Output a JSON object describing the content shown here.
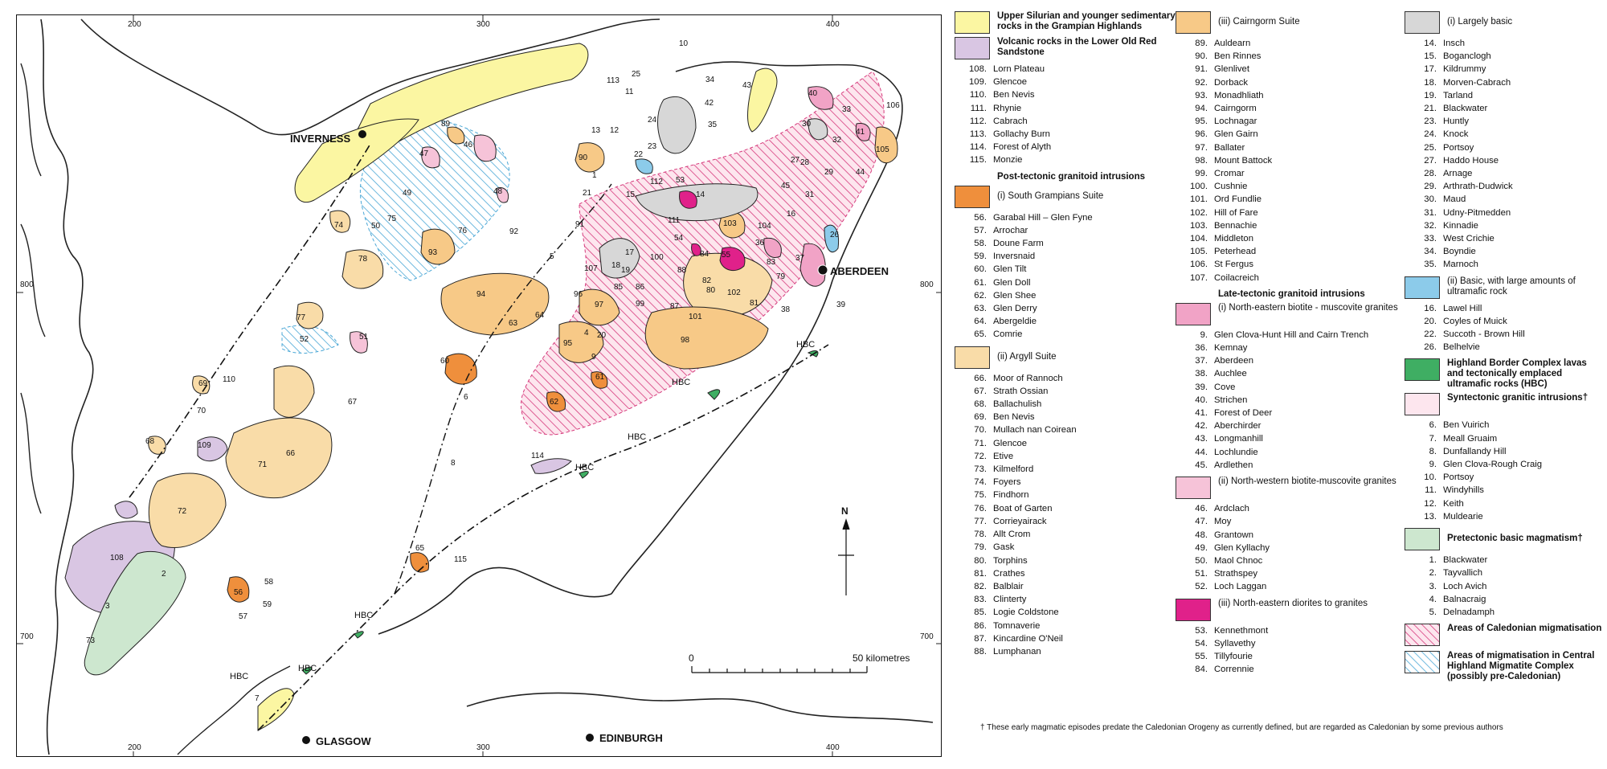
{
  "map": {
    "cities": [
      "INVERNESS",
      "ABERDEEN",
      "GLASGOW",
      "EDINBURGH"
    ],
    "grid_labels": [
      "200",
      "300",
      "400",
      "800",
      "700"
    ],
    "north_label": "N",
    "scale": {
      "start": "0",
      "end": "50 kilometres"
    },
    "boundary_label": "HBC",
    "intrusion_numbers": [
      "1",
      "2",
      "3",
      "4",
      "5",
      "6",
      "7",
      "8",
      "9",
      "10",
      "11",
      "12",
      "13",
      "14",
      "15",
      "16",
      "17",
      "18",
      "19",
      "20",
      "21",
      "22",
      "23",
      "24",
      "25",
      "26",
      "27",
      "28",
      "29",
      "30",
      "31",
      "32",
      "33",
      "34",
      "35",
      "36",
      "37",
      "38",
      "39",
      "40",
      "41",
      "42",
      "43",
      "44",
      "45",
      "46",
      "47",
      "48",
      "49",
      "50",
      "51",
      "52",
      "53",
      "54",
      "55",
      "56",
      "57",
      "58",
      "59",
      "60",
      "61",
      "62",
      "63",
      "64",
      "65",
      "66",
      "67",
      "68",
      "69",
      "70",
      "71",
      "72",
      "73",
      "74",
      "75",
      "76",
      "77",
      "78",
      "79",
      "80",
      "81",
      "82",
      "83",
      "84",
      "85",
      "86",
      "87",
      "88",
      "89",
      "90",
      "91",
      "92",
      "93",
      "94",
      "95",
      "96",
      "97",
      "98",
      "99",
      "100",
      "101",
      "102",
      "103",
      "104",
      "105",
      "106",
      "107",
      "108",
      "109",
      "110",
      "111",
      "112",
      "113",
      "114",
      "115"
    ],
    "colors": {
      "silurian": "#fbf6a2",
      "volcanic": "#d9c6e3",
      "south_grampians": "#ef8f3c",
      "argyll": "#f9dca8",
      "cairngorm": "#f7c987",
      "ne_biotite": "#f1a3c6",
      "nw_biotite": "#f6c3d8",
      "ne_diorite": "#e0218a",
      "largely_basic": "#d7d7d7",
      "basic_ultramafic": "#8ccbea",
      "hbc": "#3fae63",
      "syntectonic": "#fde6ee",
      "pretectonic": "#cde7cf",
      "caledonian_migmatisation": "#d63a7c",
      "central_migmatite": "#4aa7d6"
    }
  },
  "legend": {
    "col1": {
      "silurian": "Upper Silurian and younger sedimentary rocks in the Grampian Highlands",
      "volcanic": "Volcanic rocks in the Lower Old Red Sandstone",
      "volcanic_items": [
        [
          "108.",
          "Lorn Plateau"
        ],
        [
          "109.",
          "Glencoe"
        ],
        [
          "110.",
          "Ben Nevis"
        ],
        [
          "111.",
          "Rhynie"
        ],
        [
          "112.",
          "Cabrach"
        ],
        [
          "113.",
          "Gollachy Burn"
        ],
        [
          "114.",
          "Forest of Alyth"
        ],
        [
          "115.",
          "Monzie"
        ]
      ],
      "post_heading": "Post-tectonic granitoid intrusions",
      "south_grampians": "(i) South Grampians Suite",
      "south_items": [
        [
          "56.",
          "Garabal Hill – Glen Fyne"
        ],
        [
          "57.",
          "Arrochar"
        ],
        [
          "58.",
          "Doune Farm"
        ],
        [
          "59.",
          "Inversnaid"
        ],
        [
          "60.",
          "Glen Tilt"
        ],
        [
          "61.",
          "Glen Doll"
        ],
        [
          "62.",
          "Glen Shee"
        ],
        [
          "63.",
          "Glen Derry"
        ],
        [
          "64.",
          "Abergeldie"
        ],
        [
          "65.",
          "Comrie"
        ]
      ],
      "argyll": "(ii) Argyll Suite",
      "argyll_items": [
        [
          "66.",
          "Moor of Rannoch"
        ],
        [
          "67.",
          "Strath Ossian"
        ],
        [
          "68.",
          "Ballachulish"
        ],
        [
          "69.",
          "Ben Nevis"
        ],
        [
          "70.",
          "Mullach nan Coirean"
        ],
        [
          "71.",
          "Glencoe"
        ],
        [
          "72.",
          "Etive"
        ],
        [
          "73.",
          "Kilmelford"
        ],
        [
          "74.",
          "Foyers"
        ],
        [
          "75.",
          "Findhorn"
        ],
        [
          "76.",
          "Boat of Garten"
        ],
        [
          "77.",
          "Corrieyairack"
        ],
        [
          "78.",
          "Allt Crom"
        ],
        [
          "79.",
          "Gask"
        ],
        [
          "80.",
          "Torphins"
        ],
        [
          "81.",
          "Crathes"
        ],
        [
          "82.",
          "Balblair"
        ],
        [
          "83.",
          "Clinterty"
        ],
        [
          "85.",
          "Logie Coldstone"
        ],
        [
          "86.",
          "Tomnaverie"
        ],
        [
          "87.",
          "Kincardine O'Neil"
        ],
        [
          "88.",
          "Lumphanan"
        ]
      ]
    },
    "col2": {
      "cairngorm": "(iii) Cairngorm Suite",
      "cairngorm_items": [
        [
          "89.",
          "Auldearn"
        ],
        [
          "90.",
          "Ben Rinnes"
        ],
        [
          "91.",
          "Glenlivet"
        ],
        [
          "92.",
          "Dorback"
        ],
        [
          "93.",
          "Monadhliath"
        ],
        [
          "94.",
          "Cairngorm"
        ],
        [
          "95.",
          "Lochnagar"
        ],
        [
          "96.",
          "Glen Gairn"
        ],
        [
          "97.",
          "Ballater"
        ],
        [
          "98.",
          "Mount Battock"
        ],
        [
          "99.",
          "Cromar"
        ],
        [
          "100.",
          "Cushnie"
        ],
        [
          "101.",
          "Ord Fundlie"
        ],
        [
          "102.",
          "Hill of Fare"
        ],
        [
          "103.",
          "Bennachie"
        ],
        [
          "104.",
          "Middleton"
        ],
        [
          "105.",
          "Peterhead"
        ],
        [
          "106.",
          "St Fergus"
        ],
        [
          "107.",
          "Coilacreich"
        ]
      ],
      "late_heading": "Late-tectonic granitoid intrusions",
      "ne_biotite": "(i) North-eastern biotite - muscovite granites",
      "ne_items": [
        [
          "9.",
          "Glen Clova-Hunt Hill and Cairn Trench"
        ],
        [
          "36.",
          "Kemnay"
        ],
        [
          "37.",
          "Aberdeen"
        ],
        [
          "38.",
          "Auchlee"
        ],
        [
          "39.",
          "Cove"
        ],
        [
          "40.",
          "Strichen"
        ],
        [
          "41.",
          "Forest of Deer"
        ],
        [
          "42.",
          "Aberchirder"
        ],
        [
          "43.",
          "Longmanhill"
        ],
        [
          "44.",
          "Lochlundie"
        ],
        [
          "45.",
          "Ardlethen"
        ]
      ],
      "nw_biotite": "(ii) North-western biotite-muscovite granites",
      "nw_items": [
        [
          "46.",
          "Ardclach"
        ],
        [
          "47.",
          "Moy"
        ],
        [
          "48.",
          "Grantown"
        ],
        [
          "49.",
          "Glen Kyllachy"
        ],
        [
          "50.",
          "Maol Chnoc"
        ],
        [
          "51.",
          "Strathspey"
        ],
        [
          "52.",
          "Loch Laggan"
        ]
      ],
      "ne_diorite": "(iii) North-eastern diorites to granites",
      "diorite_items": [
        [
          "53.",
          "Kennethmont"
        ],
        [
          "54.",
          "Syllavethy"
        ],
        [
          "55.",
          "Tillyfourie"
        ],
        [
          "84.",
          "Corrennie"
        ]
      ]
    },
    "col3": {
      "largely_basic": "(i) Largely basic",
      "basic_items": [
        [
          "14.",
          "Insch"
        ],
        [
          "15.",
          "Boganclogh"
        ],
        [
          "17.",
          "Kildrummy"
        ],
        [
          "18.",
          "Morven-Cabrach"
        ],
        [
          "19.",
          "Tarland"
        ],
        [
          "21.",
          "Blackwater"
        ],
        [
          "23.",
          "Huntly"
        ],
        [
          "24.",
          "Knock"
        ],
        [
          "25.",
          "Portsoy"
        ],
        [
          "27.",
          "Haddo House"
        ],
        [
          "28.",
          "Arnage"
        ],
        [
          "29.",
          "Arthrath-Dudwick"
        ],
        [
          "30.",
          "Maud"
        ],
        [
          "31.",
          "Udny-Pitmedden"
        ],
        [
          "32.",
          "Kinnadie"
        ],
        [
          "33.",
          "West Crichie"
        ],
        [
          "34.",
          "Boyndie"
        ],
        [
          "35.",
          "Marnoch"
        ]
      ],
      "basic_ultramafic": "(ii) Basic, with large amounts of ultramafic rock",
      "ultramafic_items": [
        [
          "16.",
          "Lawel Hill"
        ],
        [
          "20.",
          "Coyles of Muick"
        ],
        [
          "22.",
          "Succoth - Brown Hill"
        ],
        [
          "26.",
          "Belhelvie"
        ]
      ],
      "hbc": "Highland Border Complex lavas and tectonically emplaced ultramafic rocks (HBC)",
      "syntectonic": "Syntectonic granitic intrusions†",
      "syn_items": [
        [
          "6.",
          "Ben Vuirich"
        ],
        [
          "7.",
          "Meall Gruaim"
        ],
        [
          "8.",
          "Dunfallandy Hill"
        ],
        [
          "9.",
          "Glen Clova-Rough Craig"
        ],
        [
          "10.",
          "Portsoy"
        ],
        [
          "11.",
          "Windyhills"
        ],
        [
          "12.",
          "Keith"
        ],
        [
          "13.",
          "Muldearie"
        ]
      ],
      "pretectonic": "Pretectonic basic magmatism†",
      "pre_items": [
        [
          "1.",
          "Blackwater"
        ],
        [
          "2.",
          "Tayvallich"
        ],
        [
          "3.",
          "Loch Avich"
        ],
        [
          "4.",
          "Balnacraig"
        ],
        [
          "5.",
          "Delnadamph"
        ]
      ],
      "caledonian_migmatisation": "Areas of Caledonian migmatisation",
      "central_migmatite": "Areas of migmatisation in Central Highland Migmatite Complex (possibly pre-Caledonian)"
    },
    "footnote": "†  These early magmatic episodes predate the Caledonian Orogeny as currently defined, but are regarded as Caledonian by some previous authors"
  }
}
